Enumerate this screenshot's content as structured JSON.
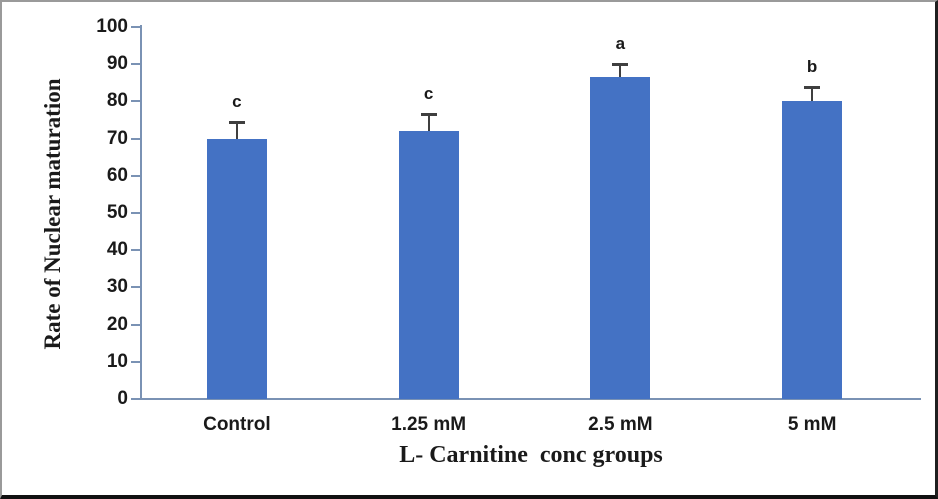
{
  "chart_data": {
    "type": "bar",
    "title": "",
    "categories": [
      "Control",
      "1.25 mM",
      "2.5 mM",
      "5 mM"
    ],
    "values": [
      70,
      72,
      86.5,
      80
    ],
    "error_up": [
      4.5,
      4.5,
      3.5,
      4
    ],
    "sig_letters": [
      "c",
      "c",
      "a",
      "b"
    ],
    "xlabel": "L- Carnitine  conc groups",
    "ylabel": "Rate of Nuclear maturation",
    "ylim": [
      0,
      100
    ],
    "yticks": [
      0,
      10,
      20,
      30,
      40,
      50,
      60,
      70,
      80,
      90,
      100
    ],
    "grid": false,
    "legend": false,
    "bar_color": "#4472c4",
    "axis_color": "#7a92b4",
    "error_bar_color": "#3f3f3f",
    "text_color": "#1a1a1a",
    "background_color": "#ffffff"
  }
}
